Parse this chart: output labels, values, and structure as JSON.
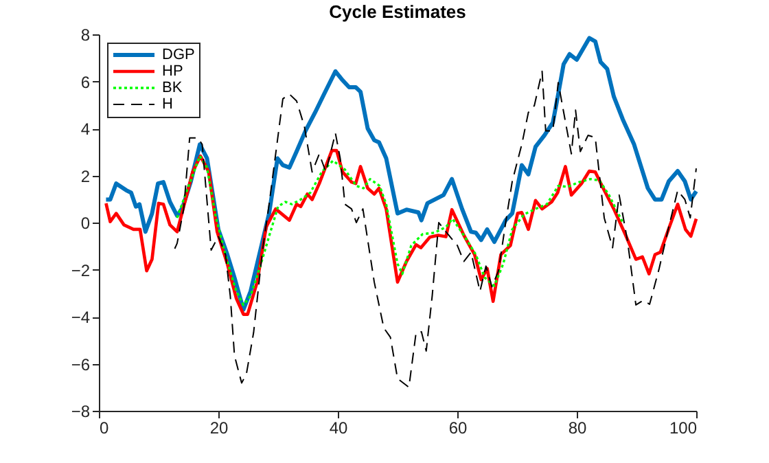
{
  "chart_data": {
    "type": "line",
    "title": "Cycle Estimates",
    "xlim": [
      0,
      100
    ],
    "xticks": [
      0,
      20,
      40,
      60,
      80,
      100
    ],
    "ylim": [
      -8,
      8
    ],
    "yticks": [
      -8,
      -6,
      -4,
      -2,
      0,
      2,
      4,
      6,
      8
    ],
    "grid": false,
    "legend": "top left",
    "marker": "none",
    "series": [
      {
        "name": "DGP",
        "color": "#0072bd",
        "line_style": "solid",
        "x": [
          1.2,
          1.9,
          2.9,
          4.6,
          5.4,
          6.2,
          6.8,
          7.8,
          8.9,
          9.9,
          10.8,
          11.9,
          13.1,
          14.0,
          15.4,
          16.9,
          18.1,
          20.0,
          21.5,
          22.7,
          24.2,
          25.4,
          26.5,
          28.5,
          29.9,
          30.8,
          31.9,
          33.1,
          34.6,
          36.2,
          37.7,
          39.6,
          40.8,
          41.9,
          43.0,
          43.8,
          45.0,
          46.1,
          46.9,
          48.1,
          50.0,
          51.5,
          53.5,
          54.0,
          55.0,
          57.7,
          59.1,
          60.8,
          62.3,
          63.1,
          64.0,
          65.0,
          66.2,
          68.1,
          69.2,
          70.8,
          71.9,
          73.1,
          74.6,
          76.0,
          76.9,
          77.8,
          78.8,
          80.0,
          82.1,
          83.1,
          84.0,
          85.1,
          86.2,
          87.7,
          89.6,
          91.9,
          93.1,
          94.2,
          95.4,
          96.9,
          98.1,
          99.1,
          100
        ],
        "values": [
          0.98,
          0.98,
          1.66,
          1.37,
          1.27,
          0.68,
          0.78,
          -0.39,
          0.39,
          1.66,
          1.72,
          0.88,
          0.29,
          0.63,
          1.75,
          3.32,
          2.73,
          -0.29,
          -1.36,
          -2.34,
          -3.7,
          -2.92,
          -1.75,
          0.39,
          2.73,
          2.44,
          2.34,
          3.02,
          3.9,
          4.68,
          5.46,
          6.43,
          6.05,
          5.75,
          5.75,
          5.56,
          4.0,
          3.5,
          3.41,
          2.73,
          0.39,
          0.55,
          0.43,
          0.1,
          0.82,
          1.17,
          1.85,
          0.58,
          -0.39,
          -0.43,
          -0.74,
          -0.29,
          -0.82,
          0.1,
          0.39,
          2.44,
          2.05,
          3.22,
          3.71,
          4.25,
          5.46,
          6.73,
          7.16,
          6.92,
          7.84,
          7.7,
          6.82,
          6.53,
          5.36,
          4.39,
          3.32,
          1.46,
          0.98,
          0.98,
          1.75,
          2.19,
          1.75,
          0.98,
          1.33
        ]
      },
      {
        "name": "HP",
        "color": "#ff0000",
        "line_style": "solid",
        "x": [
          1.2,
          1.9,
          2.9,
          4.2,
          5.8,
          6.9,
          8.0,
          8.9,
          10.0,
          10.8,
          11.9,
          13.1,
          13.8,
          15.7,
          17.0,
          18.4,
          19.8,
          21.5,
          23.0,
          24.2,
          24.9,
          26.5,
          28.0,
          29.6,
          31.9,
          33.1,
          33.8,
          34.9,
          35.7,
          36.9,
          39.0,
          39.8,
          40.8,
          42.3,
          43.0,
          43.8,
          45.0,
          46.1,
          46.9,
          48.1,
          50.0,
          51.5,
          53.1,
          53.9,
          55.4,
          56.8,
          58.1,
          59.1,
          61.1,
          62.9,
          64.0,
          65.0,
          66.0,
          67.3,
          68.9,
          70.1,
          70.8,
          71.9,
          73.1,
          74.2,
          75.8,
          76.8,
          78.1,
          79.1,
          80.8,
          82.1,
          83.1,
          84.6,
          86.2,
          88.1,
          89.9,
          91.0,
          92.1,
          93.1,
          94.0,
          95.5,
          96.9,
          98.2,
          99.1,
          100
        ],
        "values": [
          0.82,
          0.04,
          0.39,
          -0.1,
          -0.29,
          -0.29,
          -2.05,
          -1.56,
          0.82,
          0.78,
          -0.1,
          -0.39,
          0.29,
          2.15,
          2.83,
          2.15,
          -0.39,
          -1.75,
          -3.22,
          -3.9,
          -3.9,
          -2.53,
          -0.19,
          0.58,
          0.1,
          0.78,
          0.68,
          1.21,
          0.98,
          1.66,
          3.06,
          3.06,
          2.15,
          1.72,
          1.66,
          2.38,
          1.46,
          1.21,
          1.46,
          0.58,
          -2.53,
          -1.65,
          -0.94,
          -1.07,
          -0.62,
          -0.54,
          -0.6,
          0.55,
          -0.54,
          -1.36,
          -2.43,
          -1.95,
          -3.35,
          -1.36,
          -0.97,
          0.39,
          0.43,
          -0.29,
          0.94,
          0.58,
          0.88,
          1.27,
          2.38,
          1.17,
          1.66,
          2.19,
          2.15,
          1.37,
          0.58,
          -0.49,
          -1.56,
          -1.46,
          -2.18,
          -1.36,
          -1.26,
          -0.19,
          0.78,
          -0.29,
          -0.58,
          0.16
        ]
      },
      {
        "name": "BK",
        "color": "#00ff00",
        "line_style": "dotted",
        "x": [
          13.1,
          14.6,
          16.9,
          18.1,
          19.6,
          21.5,
          23.0,
          24.2,
          25.4,
          26.9,
          28.5,
          30.0,
          31.2,
          32.3,
          33.8,
          35.4,
          37.3,
          39.2,
          41.2,
          43.1,
          44.3,
          45.4,
          47.0,
          48.1,
          50.0,
          50.8,
          52.3,
          54.2,
          56.2,
          58.1,
          59.2,
          61.1,
          63.1,
          64.6,
          66.2,
          67.7,
          69.2,
          71.2,
          73.1,
          75.0,
          76.9,
          78.5,
          80.4,
          82.3,
          83.8,
          85.4,
          87.7
        ],
        "values": [
          0.2,
          1.27,
          2.83,
          2.34,
          0.2,
          -1.65,
          -2.92,
          -3.5,
          -3.12,
          -1.95,
          -0.58,
          0.68,
          0.88,
          0.78,
          0.98,
          1.27,
          2.15,
          2.63,
          2.25,
          1.56,
          1.46,
          1.85,
          1.56,
          0.78,
          -1.75,
          -2.18,
          -0.97,
          -0.49,
          -0.43,
          -0.19,
          0.16,
          -0.54,
          -1.36,
          -2.34,
          -2.69,
          -1.75,
          -0.29,
          0.35,
          0.58,
          0.78,
          1.56,
          1.52,
          1.72,
          1.85,
          1.79,
          1.17,
          0.0
        ]
      },
      {
        "name": "H",
        "color": "#000000",
        "line_style": "dashed",
        "x": [
          12.7,
          13.1,
          14.2,
          15.2,
          16.6,
          17.3,
          18.8,
          20.0,
          21.2,
          22.0,
          22.7,
          23.9,
          24.7,
          25.9,
          27.4,
          28.5,
          29.6,
          30.8,
          31.9,
          33.1,
          34.4,
          35.7,
          36.9,
          38.0,
          39.6,
          40.4,
          41.2,
          42.3,
          43.1,
          44.2,
          46.1,
          47.7,
          48.8,
          50.0,
          51.9,
          53.1,
          54.0,
          54.8,
          55.8,
          56.9,
          58.1,
          60.0,
          61.1,
          62.3,
          63.8,
          64.8,
          65.8,
          66.9,
          68.1,
          69.2,
          70.8,
          71.9,
          72.9,
          74.2,
          74.8,
          76.0,
          76.9,
          78.1,
          79.1,
          79.8,
          80.6,
          81.9,
          83.1,
          84.6,
          86.0,
          87.1,
          88.5,
          89.9,
          91.1,
          92.2,
          93.8,
          95.4,
          96.9,
          98.1,
          99.0,
          100
        ],
        "values": [
          -1.11,
          -0.88,
          0.58,
          3.6,
          3.6,
          3.32,
          -1.17,
          -0.58,
          -1.36,
          -3.12,
          -5.65,
          -6.82,
          -6.43,
          -4.68,
          -1.17,
          0.78,
          2.92,
          5.26,
          5.46,
          5.17,
          4.09,
          2.15,
          2.92,
          2.15,
          3.8,
          2.73,
          0.78,
          0.58,
          0.0,
          0.58,
          -2.53,
          -4.48,
          -4.87,
          -6.63,
          -7.0,
          -4.68,
          -4.64,
          -5.46,
          -3.12,
          0.0,
          -0.39,
          -0.97,
          -1.65,
          -1.26,
          -2.92,
          -1.85,
          -2.73,
          -2.05,
          0.0,
          1.75,
          3.32,
          4.68,
          4.97,
          6.43,
          3.9,
          3.9,
          5.95,
          4.29,
          2.92,
          4.78,
          3.02,
          3.71,
          3.61,
          0.2,
          -1.07,
          1.17,
          -0.78,
          -3.5,
          -3.31,
          -3.47,
          -1.95,
          -0.19,
          1.37,
          0.98,
          0.2,
          2.3
        ]
      }
    ]
  }
}
